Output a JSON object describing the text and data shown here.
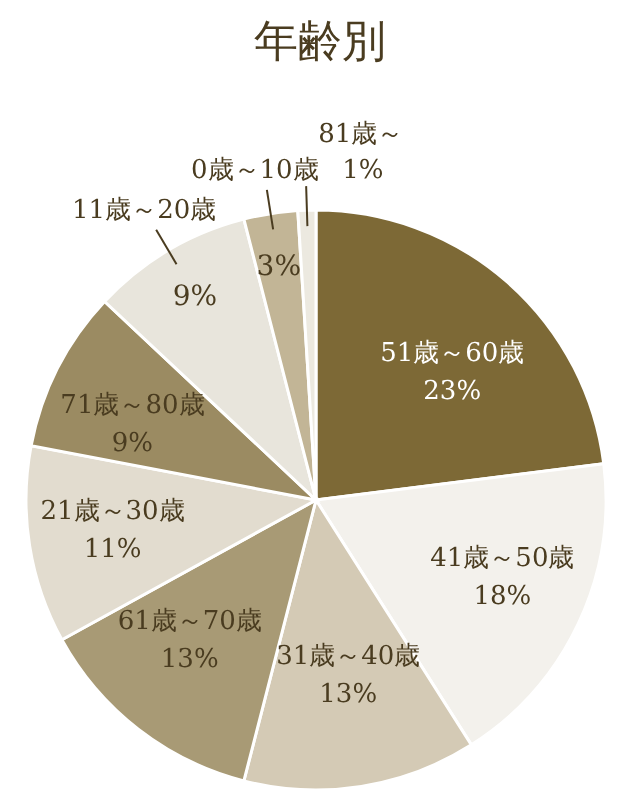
{
  "chart_data": {
    "type": "pie",
    "title": "年齢別",
    "categories": [
      "51歳～60歳",
      "41歳～50歳",
      "31歳～40歳",
      "61歳～70歳",
      "21歳～30歳",
      "71歳～80歳",
      "11歳～20歳",
      "0歳～10歳",
      "81歳～"
    ],
    "values": [
      23,
      18,
      13,
      13,
      11,
      9,
      9,
      3,
      1
    ],
    "value_labels": [
      "23%",
      "18%",
      "13%",
      "13%",
      "11%",
      "9%",
      "9%",
      "3%",
      "1%"
    ],
    "colors": [
      "#7d6936",
      "#f3f1ec",
      "#d4cab5",
      "#a89a75",
      "#e2dccf",
      "#9b8b62",
      "#e8e5dc",
      "#c2b596",
      "#ece9e0"
    ]
  }
}
